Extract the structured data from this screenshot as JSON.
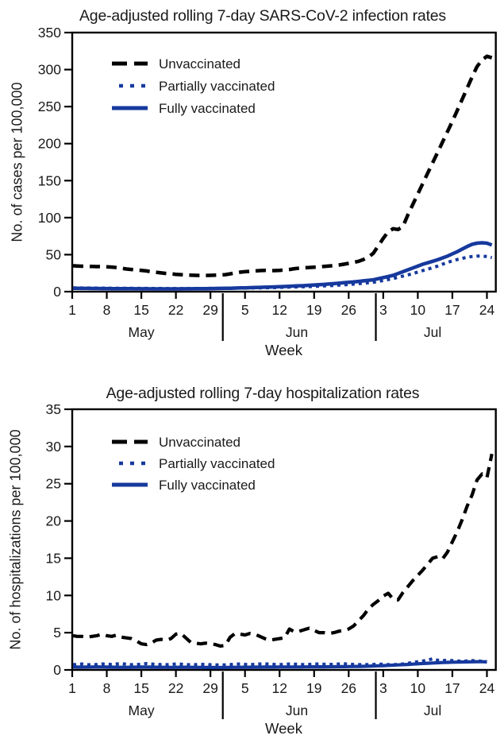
{
  "chart_data": [
    {
      "type": "line",
      "title": "Age-adjusted rolling 7-day SARS-CoV-2 infection rates",
      "ylabel": "No. of cases per 100,000",
      "xlabel": "Week",
      "ylim": [
        0,
        350
      ],
      "yticks": [
        0,
        50,
        100,
        150,
        200,
        250,
        300,
        350
      ],
      "grid": false,
      "legend_position": "top-left-inside",
      "x_axis": {
        "unit": "day (May 1 = 0)",
        "tick_days": [
          0,
          7,
          14,
          21,
          28,
          35,
          42,
          49,
          56,
          63,
          70,
          77,
          84
        ],
        "tick_labels": [
          "1",
          "8",
          "15",
          "22",
          "29",
          "5",
          "12",
          "19",
          "26",
          "3",
          "10",
          "17",
          "24"
        ],
        "month_divider_days": [
          30.5,
          61.5
        ],
        "month_labels": [
          {
            "day": 14,
            "label": "May"
          },
          {
            "day": 45.5,
            "label": "Jun"
          },
          {
            "day": 73,
            "label": "Jul"
          }
        ]
      },
      "series": [
        {
          "name": "Unvaccinated",
          "color": "#000000",
          "style": "dashed",
          "width": 4.5,
          "values": [
            35,
            34.7,
            34.4,
            34.2,
            34,
            33.8,
            34,
            33.6,
            33.2,
            32.5,
            31.5,
            30.6,
            30,
            29.4,
            28.8,
            28,
            27,
            26.2,
            25.3,
            24.6,
            24,
            23.4,
            23,
            22.6,
            22.2,
            22,
            21.9,
            21.9,
            22,
            22.2,
            22.4,
            23,
            24,
            25.3,
            26.3,
            27,
            27.5,
            28,
            28.4,
            28.8,
            28.6,
            28.5,
            28.8,
            29.3,
            30,
            31,
            31.8,
            32.3,
            32.6,
            33,
            33.4,
            34,
            34.6,
            35.2,
            36,
            37,
            38.2,
            39.5,
            41,
            43.5,
            46.5,
            52,
            62,
            72,
            81,
            85,
            84,
            88,
            104,
            118,
            132,
            146,
            160,
            174,
            188,
            202,
            216,
            230,
            245,
            260,
            275,
            290,
            304,
            313,
            318,
            316
          ]
        },
        {
          "name": "Partially vaccinated",
          "color": "#16399d",
          "style": "dotted",
          "width": 4,
          "values": [
            5,
            5,
            4.9,
            4.9,
            4.8,
            4.8,
            4.7,
            4.7,
            4.6,
            4.6,
            4.5,
            4.5,
            4.5,
            4.4,
            4.4,
            4.4,
            4.3,
            4.3,
            4.3,
            4.2,
            4.2,
            4.2,
            4.2,
            4.2,
            4.2,
            4.2,
            4.3,
            4.3,
            4.4,
            4.4,
            4.5,
            4.5,
            4.6,
            4.7,
            4.8,
            4.9,
            5,
            5.1,
            5.2,
            5.3,
            5.4,
            5.5,
            5.7,
            5.9,
            6.1,
            6.3,
            6.5,
            6.7,
            6.9,
            7.1,
            7.4,
            7.7,
            8,
            8.4,
            8.8,
            9.2,
            9.7,
            10.2,
            10.8,
            11.4,
            12,
            12.7,
            13.8,
            15,
            16.3,
            17.7,
            19.3,
            21,
            22.7,
            24.5,
            26.4,
            28.4,
            30.4,
            32.4,
            34.5,
            37,
            39.5,
            41.5,
            43.5,
            45,
            46.5,
            47.5,
            48,
            48,
            47.5,
            46
          ]
        },
        {
          "name": "Fully vaccinated",
          "color": "#16399d",
          "style": "solid",
          "width": 4.5,
          "values": [
            4.5,
            4.5,
            4.4,
            4.4,
            4.3,
            4.3,
            4.2,
            4.2,
            4.1,
            4.1,
            4,
            4,
            4,
            3.9,
            3.9,
            3.9,
            3.8,
            3.8,
            3.8,
            3.8,
            3.8,
            3.8,
            3.8,
            3.9,
            3.9,
            4,
            4,
            4.1,
            4.2,
            4.3,
            4.4,
            4.5,
            4.6,
            4.8,
            5,
            5.2,
            5.4,
            5.6,
            5.8,
            6,
            6.2,
            6.4,
            6.7,
            7,
            7.3,
            7.6,
            7.9,
            8.2,
            8.6,
            9,
            9.4,
            9.8,
            10.3,
            10.8,
            11.4,
            12,
            12.6,
            13.2,
            13.9,
            14.6,
            15.3,
            16,
            17.5,
            19,
            20.5,
            22,
            24.5,
            27,
            29.5,
            32,
            34.5,
            37,
            39,
            41,
            43,
            45.5,
            48,
            51,
            54,
            57.5,
            61,
            64,
            65.5,
            66,
            65.5,
            63
          ]
        }
      ]
    },
    {
      "type": "line",
      "title": "Age-adjusted rolling 7-day hospitalization rates",
      "ylabel": "No. of hospitalizations per 100,000",
      "xlabel": "Week",
      "ylim": [
        0,
        35
      ],
      "yticks": [
        0,
        5,
        10,
        15,
        20,
        25,
        30,
        35
      ],
      "grid": false,
      "legend_position": "top-left-inside",
      "x_axis": {
        "unit": "day (May 1 = 0)",
        "tick_days": [
          0,
          7,
          14,
          21,
          28,
          35,
          42,
          49,
          56,
          63,
          70,
          77,
          84
        ],
        "tick_labels": [
          "1",
          "8",
          "15",
          "22",
          "29",
          "5",
          "12",
          "19",
          "26",
          "3",
          "10",
          "17",
          "24"
        ],
        "month_divider_days": [
          30.5,
          61.5
        ],
        "month_labels": [
          {
            "day": 14,
            "label": "May"
          },
          {
            "day": 45.5,
            "label": "Jun"
          },
          {
            "day": 73,
            "label": "Jul"
          }
        ]
      },
      "series": [
        {
          "name": "Unvaccinated",
          "color": "#000000",
          "style": "dashed",
          "width": 4.2,
          "values": [
            4.6,
            4.5,
            4.5,
            4.4,
            4.5,
            4.6,
            4.8,
            4.6,
            4.5,
            4.7,
            4.4,
            4.3,
            4.2,
            3.9,
            3.5,
            3.4,
            3.6,
            4,
            4.1,
            4,
            4.2,
            4.8,
            4.9,
            4.3,
            3.7,
            3.6,
            3.5,
            3.6,
            3.5,
            3.4,
            3.2,
            3.3,
            4.4,
            4.9,
            4.8,
            4.7,
            4.9,
            4.8,
            4.5,
            4.2,
            4,
            4.1,
            4.2,
            4.3,
            5.5,
            5.1,
            5.2,
            5.4,
            5.6,
            5.3,
            5,
            5,
            4.9,
            5,
            5.2,
            5.3,
            5.5,
            5.9,
            6.6,
            7.3,
            8.2,
            8.8,
            9.3,
            9.9,
            10.3,
            9.5,
            9.4,
            10.4,
            11.2,
            12,
            12.7,
            13.4,
            14.2,
            15,
            15.2,
            14.9,
            15.8,
            17.2,
            18.6,
            20.2,
            22,
            23.5,
            25.5,
            26.3,
            25.8,
            29
          ]
        },
        {
          "name": "Partially vaccinated",
          "color": "#16399d",
          "style": "dotted",
          "width": 4,
          "values": [
            0.7,
            0.75,
            0.8,
            0.72,
            0.68,
            0.74,
            0.8,
            0.78,
            0.72,
            0.8,
            0.85,
            0.75,
            0.7,
            0.72,
            0.78,
            0.85,
            0.8,
            0.75,
            0.72,
            0.7,
            0.75,
            0.8,
            0.78,
            0.72,
            0.7,
            0.72,
            0.75,
            0.73,
            0.7,
            0.68,
            0.66,
            0.68,
            0.72,
            0.78,
            0.8,
            0.75,
            0.72,
            0.75,
            0.8,
            0.82,
            0.78,
            0.74,
            0.72,
            0.75,
            0.8,
            0.78,
            0.74,
            0.72,
            0.74,
            0.78,
            0.8,
            0.76,
            0.73,
            0.75,
            0.8,
            0.82,
            0.78,
            0.74,
            0.72,
            0.7,
            0.72,
            0.74,
            0.76,
            0.78,
            0.72,
            0.7,
            0.74,
            0.8,
            0.9,
            1,
            1.1,
            1.2,
            1.3,
            1.5,
            1.3,
            1.25,
            1.3,
            1.25,
            1.2,
            1.15,
            1.2,
            1.25,
            1.2,
            1.15,
            1.1
          ]
        },
        {
          "name": "Fully vaccinated",
          "color": "#16399d",
          "style": "solid",
          "width": 4.2,
          "values": [
            0.4,
            0.38,
            0.37,
            0.38,
            0.4,
            0.42,
            0.4,
            0.38,
            0.37,
            0.36,
            0.35,
            0.35,
            0.36,
            0.37,
            0.38,
            0.38,
            0.37,
            0.36,
            0.35,
            0.35,
            0.34,
            0.35,
            0.36,
            0.36,
            0.35,
            0.34,
            0.34,
            0.33,
            0.33,
            0.32,
            0.32,
            0.33,
            0.34,
            0.35,
            0.35,
            0.36,
            0.36,
            0.37,
            0.37,
            0.38,
            0.38,
            0.38,
            0.39,
            0.39,
            0.4,
            0.4,
            0.4,
            0.41,
            0.41,
            0.42,
            0.42,
            0.42,
            0.43,
            0.43,
            0.44,
            0.44,
            0.45,
            0.46,
            0.47,
            0.48,
            0.5,
            0.53,
            0.56,
            0.58,
            0.61,
            0.64,
            0.67,
            0.7,
            0.74,
            0.78,
            0.82,
            0.86,
            0.9,
            0.93,
            0.96,
            0.99,
            1.01,
            1.03,
            1.05,
            1.07,
            1.08,
            1.09,
            1.1,
            1.1,
            1.08
          ]
        }
      ]
    }
  ]
}
